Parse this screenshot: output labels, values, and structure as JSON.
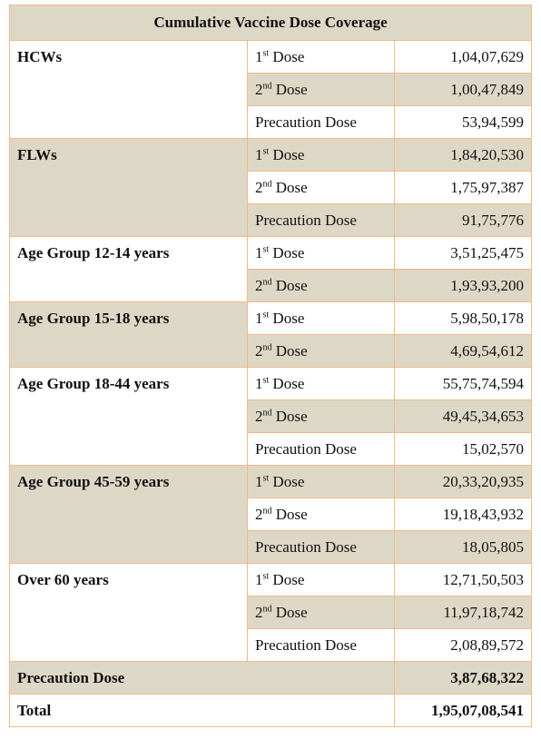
{
  "title": "Cumulative Vaccine Dose Coverage",
  "groups": [
    {
      "name": "HCWs",
      "rows": [
        {
          "dose": "1st Dose",
          "value": "1,04,07,629"
        },
        {
          "dose": "2nd Dose",
          "value": "1,00,47,849"
        },
        {
          "dose": "Precaution Dose",
          "value": "53,94,599"
        }
      ]
    },
    {
      "name": "FLWs",
      "rows": [
        {
          "dose": "1st Dose",
          "value": "1,84,20,530"
        },
        {
          "dose": "2nd Dose",
          "value": "1,75,97,387"
        },
        {
          "dose": "Precaution Dose",
          "value": "91,75,776"
        }
      ]
    },
    {
      "name": "Age Group 12-14 years",
      "rows": [
        {
          "dose": "1st Dose",
          "value": "3,51,25,475"
        },
        {
          "dose": "2nd Dose",
          "value": "1,93,93,200"
        }
      ]
    },
    {
      "name": "Age Group 15-18 years",
      "rows": [
        {
          "dose": "1st Dose",
          "value": "5,98,50,178"
        },
        {
          "dose": "2nd Dose",
          "value": "4,69,54,612"
        }
      ]
    },
    {
      "name": "Age Group 18-44 years",
      "rows": [
        {
          "dose": "1st Dose",
          "value": "55,75,74,594"
        },
        {
          "dose": "2nd Dose",
          "value": "49,45,34,653"
        },
        {
          "dose": "Precaution Dose",
          "value": "15,02,570"
        }
      ]
    },
    {
      "name": "Age Group 45-59 years",
      "rows": [
        {
          "dose": "1st Dose",
          "value": "20,33,20,935"
        },
        {
          "dose": "2nd Dose",
          "value": "19,18,43,932"
        },
        {
          "dose": "Precaution Dose",
          "value": "18,05,805"
        }
      ]
    },
    {
      "name": "Over 60 years",
      "rows": [
        {
          "dose": "1st Dose",
          "value": "12,71,50,503"
        },
        {
          "dose": "2nd Dose",
          "value": "11,97,18,742"
        },
        {
          "dose": "Precaution Dose",
          "value": "2,08,89,572"
        }
      ]
    }
  ],
  "summary": [
    {
      "label": "Precaution Dose",
      "value": "3,87,68,322"
    },
    {
      "label": "Total",
      "value": "1,95,07,08,541"
    }
  ]
}
